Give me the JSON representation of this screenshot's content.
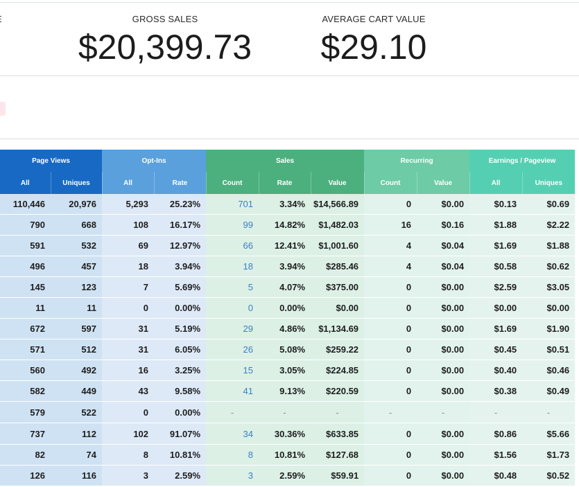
{
  "summary": {
    "cut_label": "E",
    "gross_sales_label": "GROSS SALES",
    "gross_sales_value": "$20,399.73",
    "avg_cart_label": "AVERAGE CART VALUE",
    "avg_cart_value": "$29.10"
  },
  "colors": {
    "page_views": "#1769c4",
    "opt_ins": "#5aa0dc",
    "sales": "#4cb07e",
    "recurring": "#6dcba6",
    "earnings": "#55cfb2"
  },
  "table": {
    "groups": [
      {
        "key": "pv",
        "label": "Page Views"
      },
      {
        "key": "oi",
        "label": "Opt-Ins"
      },
      {
        "key": "sa",
        "label": "Sales"
      },
      {
        "key": "re",
        "label": "Recurring"
      },
      {
        "key": "ep",
        "label": "Earnings / Pageview"
      }
    ],
    "subheaders": [
      "All",
      "Uniques",
      "All",
      "Rate",
      "Count",
      "Rate",
      "Value",
      "Count",
      "Value",
      "All",
      "Uniques"
    ],
    "rows": [
      [
        "110,446",
        "20,976",
        "5,293",
        "25.23%",
        "701",
        "3.34%",
        "$14,566.89",
        "0",
        "$0.00",
        "$0.13",
        "$0.69"
      ],
      [
        "790",
        "668",
        "108",
        "16.17%",
        "99",
        "14.82%",
        "$1,482.03",
        "16",
        "$0.16",
        "$1.88",
        "$2.22"
      ],
      [
        "591",
        "532",
        "69",
        "12.97%",
        "66",
        "12.41%",
        "$1,001.60",
        "4",
        "$0.04",
        "$1.69",
        "$1.88"
      ],
      [
        "496",
        "457",
        "18",
        "3.94%",
        "18",
        "3.94%",
        "$285.46",
        "4",
        "$0.04",
        "$0.58",
        "$0.62"
      ],
      [
        "145",
        "123",
        "7",
        "5.69%",
        "5",
        "4.07%",
        "$375.00",
        "0",
        "$0.00",
        "$2.59",
        "$3.05"
      ],
      [
        "11",
        "11",
        "0",
        "0.00%",
        "0",
        "0.00%",
        "$0.00",
        "0",
        "$0.00",
        "$0.00",
        "$0.00"
      ],
      [
        "672",
        "597",
        "31",
        "5.19%",
        "29",
        "4.86%",
        "$1,134.69",
        "0",
        "$0.00",
        "$1.69",
        "$1.90"
      ],
      [
        "571",
        "512",
        "31",
        "6.05%",
        "26",
        "5.08%",
        "$259.22",
        "0",
        "$0.00",
        "$0.45",
        "$0.51"
      ],
      [
        "560",
        "492",
        "16",
        "3.25%",
        "15",
        "3.05%",
        "$224.85",
        "0",
        "$0.00",
        "$0.40",
        "$0.46"
      ],
      [
        "582",
        "449",
        "43",
        "9.58%",
        "41",
        "9.13%",
        "$220.59",
        "0",
        "$0.00",
        "$0.38",
        "$0.49"
      ],
      [
        "579",
        "522",
        "0",
        "0.00%",
        "-",
        "-",
        "-",
        "-",
        "-",
        "-",
        "-"
      ],
      [
        "737",
        "112",
        "102",
        "91.07%",
        "34",
        "30.36%",
        "$633.85",
        "0",
        "$0.00",
        "$0.86",
        "$5.66"
      ],
      [
        "82",
        "74",
        "8",
        "10.81%",
        "8",
        "10.81%",
        "$127.68",
        "0",
        "$0.00",
        "$1.56",
        "$1.73"
      ],
      [
        "126",
        "116",
        "3",
        "2.59%",
        "3",
        "2.59%",
        "$59.91",
        "0",
        "$0.00",
        "$0.48",
        "$0.52"
      ]
    ]
  }
}
